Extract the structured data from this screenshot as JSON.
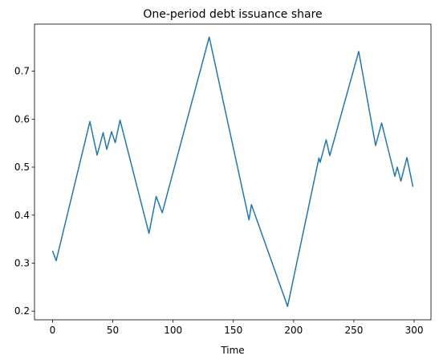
{
  "chart_data": {
    "type": "line",
    "title": "One-period debt issuance share",
    "xlabel": "Time",
    "x": [
      0,
      3,
      31,
      37,
      42,
      45,
      49,
      52,
      56,
      80,
      86,
      91,
      130,
      163,
      165,
      195,
      221,
      222,
      227,
      230,
      254,
      268,
      273,
      284,
      286,
      289,
      294,
      299
    ],
    "series": [
      {
        "color": "#1f77b4",
        "values": [
          0.326,
          0.305,
          0.595,
          0.525,
          0.572,
          0.537,
          0.574,
          0.551,
          0.598,
          0.362,
          0.439,
          0.405,
          0.771,
          0.39,
          0.422,
          0.21,
          0.519,
          0.51,
          0.557,
          0.524,
          0.741,
          0.545,
          0.592,
          0.481,
          0.5,
          0.471,
          0.52,
          0.459
        ]
      }
    ],
    "xlim": [
      -14.95,
      313.95
    ],
    "xticks": [
      0,
      50,
      100,
      150,
      200,
      250,
      300
    ],
    "ylim": [
      0.182,
      0.798
    ],
    "yticks": [
      0.2,
      0.3,
      0.4,
      0.5,
      0.6,
      0.7
    ],
    "grid": false
  }
}
